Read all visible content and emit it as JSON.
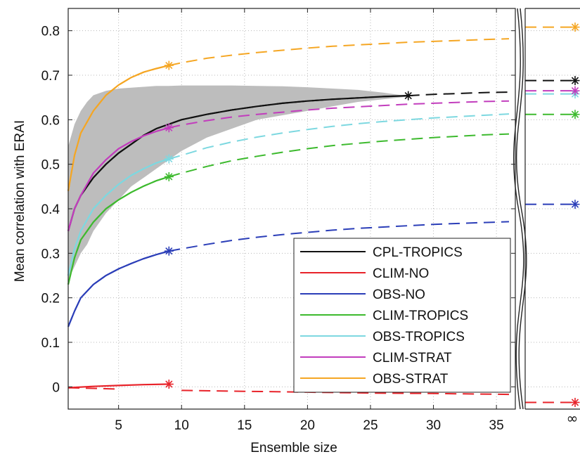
{
  "chart_data": {
    "type": "line",
    "xlabel": "Ensemble size",
    "ylabel": "Mean correlation with ERAI",
    "xlim": [
      1,
      36.5
    ],
    "ylim": [
      -0.05,
      0.85
    ],
    "xticks": [
      5,
      10,
      15,
      20,
      25,
      30,
      35
    ],
    "yticks": [
      0,
      0.1,
      0.2,
      0.3,
      0.4,
      0.5,
      0.6,
      0.7,
      0.8
    ],
    "infinity_label": "∞",
    "grid": true,
    "legend_position": "bottom-right",
    "shaded_band": {
      "color": "#bdbdbd",
      "x": [
        1,
        1.5,
        2,
        2.5,
        3,
        4,
        5,
        6,
        7,
        8,
        9,
        10,
        12,
        14,
        16,
        18,
        20,
        22,
        24,
        26,
        28
      ],
      "lower": [
        0.24,
        0.27,
        0.3,
        0.32,
        0.35,
        0.39,
        0.42,
        0.45,
        0.47,
        0.49,
        0.51,
        0.53,
        0.56,
        0.58,
        0.6,
        0.61,
        0.62,
        0.63,
        0.64,
        0.646,
        0.652
      ],
      "upper": [
        0.54,
        0.59,
        0.62,
        0.64,
        0.655,
        0.665,
        0.67,
        0.672,
        0.674,
        0.676,
        0.676,
        0.677,
        0.677,
        0.677,
        0.676,
        0.675,
        0.673,
        0.67,
        0.667,
        0.661,
        0.653
      ]
    },
    "series": [
      {
        "name": "CPL-TROPICS",
        "color": "#111111",
        "solid_end": 28,
        "y_inf": 0.688,
        "points": [
          [
            1,
            0.35
          ],
          [
            1.5,
            0.4
          ],
          [
            2,
            0.43
          ],
          [
            3,
            0.47
          ],
          [
            4,
            0.5
          ],
          [
            5,
            0.525
          ],
          [
            6,
            0.545
          ],
          [
            7,
            0.565
          ],
          [
            8,
            0.58
          ],
          [
            9,
            0.59
          ],
          [
            10,
            0.6
          ],
          [
            12,
            0.612
          ],
          [
            14,
            0.622
          ],
          [
            16,
            0.63
          ],
          [
            18,
            0.637
          ],
          [
            20,
            0.642
          ],
          [
            22,
            0.646
          ],
          [
            24,
            0.649
          ],
          [
            26,
            0.652
          ],
          [
            28,
            0.654
          ],
          [
            30,
            0.657
          ],
          [
            32,
            0.659
          ],
          [
            34,
            0.661
          ],
          [
            36,
            0.662
          ]
        ]
      },
      {
        "name": "CLIM-NO",
        "color": "#e8232a",
        "solid_end": 9,
        "y_inf": -0.035,
        "solid_points": [
          [
            1,
            -0.002
          ],
          [
            3,
            0.001
          ],
          [
            5,
            0.003
          ],
          [
            7,
            0.005
          ],
          [
            9,
            0.006
          ]
        ],
        "points": [
          [
            1,
            -0.002
          ],
          [
            5,
            -0.005
          ],
          [
            10,
            -0.008
          ],
          [
            15,
            -0.01
          ],
          [
            20,
            -0.012
          ],
          [
            25,
            -0.014
          ],
          [
            30,
            -0.015
          ],
          [
            36,
            -0.017
          ]
        ]
      },
      {
        "name": "OBS-NO",
        "color": "#2b3eb8",
        "solid_end": 9,
        "y_inf": 0.41,
        "points": [
          [
            1,
            0.135
          ],
          [
            1.5,
            0.17
          ],
          [
            2,
            0.2
          ],
          [
            3,
            0.23
          ],
          [
            4,
            0.25
          ],
          [
            5,
            0.265
          ],
          [
            6,
            0.277
          ],
          [
            7,
            0.288
          ],
          [
            8,
            0.297
          ],
          [
            9,
            0.305
          ],
          [
            10,
            0.31
          ],
          [
            12,
            0.32
          ],
          [
            14,
            0.329
          ],
          [
            16,
            0.336
          ],
          [
            18,
            0.342
          ],
          [
            20,
            0.347
          ],
          [
            22,
            0.352
          ],
          [
            24,
            0.356
          ],
          [
            26,
            0.359
          ],
          [
            28,
            0.362
          ],
          [
            30,
            0.365
          ],
          [
            32,
            0.367
          ],
          [
            34,
            0.369
          ],
          [
            36,
            0.371
          ]
        ]
      },
      {
        "name": "CLIM-TROPICS",
        "color": "#3dba2e",
        "solid_end": 9,
        "y_inf": 0.612,
        "points": [
          [
            1,
            0.23
          ],
          [
            1.5,
            0.29
          ],
          [
            2,
            0.33
          ],
          [
            3,
            0.37
          ],
          [
            4,
            0.4
          ],
          [
            5,
            0.42
          ],
          [
            6,
            0.437
          ],
          [
            7,
            0.451
          ],
          [
            8,
            0.463
          ],
          [
            9,
            0.472
          ],
          [
            10,
            0.48
          ],
          [
            12,
            0.495
          ],
          [
            14,
            0.508
          ],
          [
            16,
            0.518
          ],
          [
            18,
            0.527
          ],
          [
            20,
            0.535
          ],
          [
            22,
            0.542
          ],
          [
            24,
            0.547
          ],
          [
            26,
            0.552
          ],
          [
            28,
            0.556
          ],
          [
            30,
            0.56
          ],
          [
            32,
            0.563
          ],
          [
            34,
            0.566
          ],
          [
            36,
            0.568
          ]
        ]
      },
      {
        "name": "OBS-TROPICS",
        "color": "#7dd8e0",
        "solid_end": 9,
        "y_inf": 0.658,
        "points": [
          [
            1,
            0.25
          ],
          [
            1.5,
            0.31
          ],
          [
            2,
            0.35
          ],
          [
            3,
            0.4
          ],
          [
            4,
            0.43
          ],
          [
            5,
            0.455
          ],
          [
            6,
            0.475
          ],
          [
            7,
            0.49
          ],
          [
            8,
            0.503
          ],
          [
            9,
            0.512
          ],
          [
            10,
            0.52
          ],
          [
            12,
            0.537
          ],
          [
            14,
            0.55
          ],
          [
            16,
            0.561
          ],
          [
            18,
            0.57
          ],
          [
            20,
            0.578
          ],
          [
            22,
            0.585
          ],
          [
            24,
            0.591
          ],
          [
            26,
            0.596
          ],
          [
            28,
            0.6
          ],
          [
            30,
            0.604
          ],
          [
            32,
            0.607
          ],
          [
            34,
            0.61
          ],
          [
            36,
            0.613
          ]
        ]
      },
      {
        "name": "CLIM-STRAT",
        "color": "#c23dbd",
        "solid_end": 9,
        "y_inf": 0.665,
        "points": [
          [
            1,
            0.35
          ],
          [
            1.5,
            0.4
          ],
          [
            2,
            0.43
          ],
          [
            3,
            0.48
          ],
          [
            4,
            0.51
          ],
          [
            5,
            0.535
          ],
          [
            6,
            0.551
          ],
          [
            7,
            0.564
          ],
          [
            8,
            0.574
          ],
          [
            9,
            0.582
          ],
          [
            10,
            0.588
          ],
          [
            12,
            0.598
          ],
          [
            14,
            0.606
          ],
          [
            16,
            0.612
          ],
          [
            18,
            0.617
          ],
          [
            20,
            0.622
          ],
          [
            22,
            0.626
          ],
          [
            24,
            0.629
          ],
          [
            26,
            0.632
          ],
          [
            28,
            0.635
          ],
          [
            30,
            0.637
          ],
          [
            32,
            0.639
          ],
          [
            34,
            0.641
          ],
          [
            36,
            0.642
          ]
        ]
      },
      {
        "name": "OBS-STRAT",
        "color": "#f5a623",
        "solid_end": 9,
        "y_inf": 0.808,
        "points": [
          [
            1,
            0.44
          ],
          [
            1.5,
            0.52
          ],
          [
            2,
            0.57
          ],
          [
            3,
            0.62
          ],
          [
            4,
            0.655
          ],
          [
            5,
            0.678
          ],
          [
            6,
            0.695
          ],
          [
            7,
            0.707
          ],
          [
            8,
            0.715
          ],
          [
            9,
            0.722
          ],
          [
            10,
            0.728
          ],
          [
            12,
            0.738
          ],
          [
            14,
            0.745
          ],
          [
            16,
            0.751
          ],
          [
            18,
            0.756
          ],
          [
            20,
            0.761
          ],
          [
            22,
            0.765
          ],
          [
            24,
            0.768
          ],
          [
            26,
            0.771
          ],
          [
            28,
            0.774
          ],
          [
            30,
            0.776
          ],
          [
            32,
            0.778
          ],
          [
            34,
            0.78
          ],
          [
            36,
            0.782
          ]
        ]
      }
    ]
  }
}
